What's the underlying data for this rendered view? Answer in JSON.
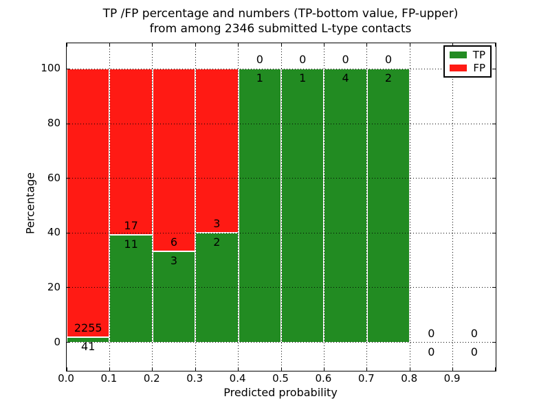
{
  "figure": {
    "title_line1": "TP /FP percentage and numbers (TP-bottom value, FP-upper)",
    "title_line2": "from among 2346 submitted L-type contacts",
    "xlabel": "Predicted probability",
    "ylabel": "Percentage",
    "total_submitted_contacts": 2346
  },
  "chart_data": {
    "type": "bar",
    "stacked": true,
    "title": "TP /FP percentage and numbers (TP-bottom value, FP-upper)\nfrom among 2346 submitted L-type contacts",
    "xlabel": "Predicted probability",
    "ylabel": "Percentage",
    "xlim": [
      0.0,
      1.0
    ],
    "ylim": [
      -10.4,
      109.4
    ],
    "grid": "dotted",
    "legend_position": "upper right",
    "x_tick_labels": [
      "0.0",
      "0.1",
      "0.2",
      "0.3",
      "0.4",
      "0.5",
      "0.6",
      "0.7",
      "0.8",
      "0.9"
    ],
    "y_tick_values": [
      0,
      20,
      40,
      60,
      80,
      100
    ],
    "categories": [
      "0.0-0.1",
      "0.1-0.2",
      "0.2-0.3",
      "0.3-0.4",
      "0.4-0.5",
      "0.5-0.6",
      "0.6-0.7",
      "0.7-0.8",
      "0.8-0.9",
      "0.9-1.0"
    ],
    "series": [
      {
        "name": "TP",
        "color": "#228B22",
        "counts": [
          41,
          11,
          3,
          2,
          1,
          1,
          4,
          2,
          0,
          0
        ]
      },
      {
        "name": "FP",
        "color": "#FF1A14",
        "counts": [
          2255,
          17,
          6,
          3,
          0,
          0,
          0,
          0,
          0,
          0
        ]
      }
    ],
    "bar_tp_percentages": [
      1.79,
      39.29,
      33.33,
      40.0,
      100.0,
      100.0,
      100.0,
      100.0,
      null,
      null
    ],
    "annotation_rule": "TP count below segment boundary, FP count above"
  }
}
